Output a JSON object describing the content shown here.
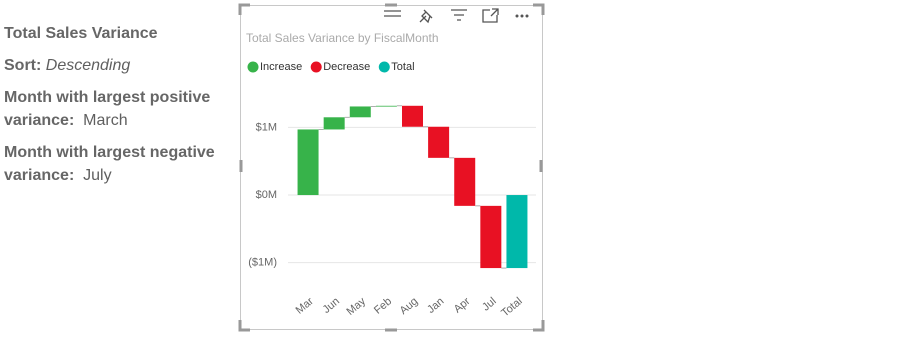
{
  "panel": {
    "heading": "Total Sales Variance",
    "sort_label": "Sort:",
    "sort_value": "Descending",
    "positive_label": "Month with largest positive variance:",
    "positive_value": "March",
    "negative_label": "Month with largest negative variance:",
    "negative_value": "July"
  },
  "chart_data": {
    "type": "waterfall",
    "title": "Total Sales Variance by FiscalMonth",
    "categories": [
      "Mar",
      "Jun",
      "May",
      "Feb",
      "Aug",
      "Jan",
      "Apr",
      "Jul",
      "Total"
    ],
    "values": [
      0.97,
      0.18,
      0.16,
      0.01,
      -0.31,
      -0.46,
      -0.71,
      -0.92,
      -1.08
    ],
    "legend": [
      {
        "name": "Increase",
        "color": "#37b34a"
      },
      {
        "name": "Decrease",
        "color": "#e81123"
      },
      {
        "name": "Total",
        "color": "#00b8aa"
      }
    ],
    "ylim": [
      -1.36,
      1.45
    ],
    "yticks": [
      {
        "value": -1,
        "label": "($1M)"
      },
      {
        "value": 0,
        "label": "$0M"
      },
      {
        "value": 1,
        "label": "$1M"
      }
    ],
    "grid": true
  }
}
